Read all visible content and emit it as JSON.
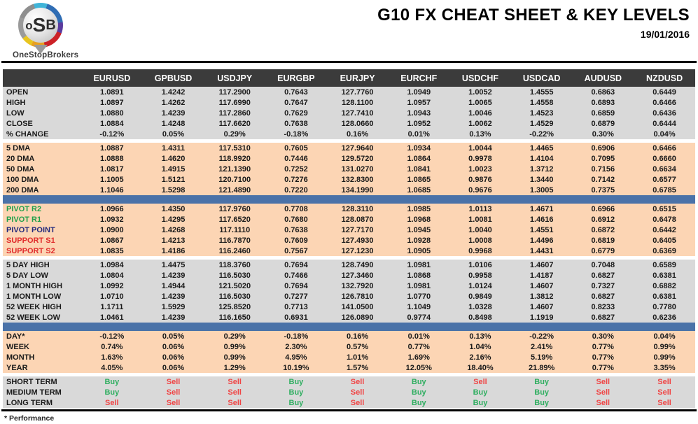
{
  "header": {
    "logo": {
      "acronym_o": "o",
      "acronym_s": "S",
      "acronym_b": "B",
      "brand": "OneStopBrokers"
    },
    "title": "G10 FX CHEAT SHEET & KEY LEVELS",
    "date": "19/01/2016"
  },
  "colors": {
    "header_row_bg": "#3b3b3b",
    "separator_bar_blue": "#4a72a8",
    "section_peach": "#fcd5b4",
    "section_gray": "#d9d9d9",
    "pivot_green": "#21a04a",
    "pivot_navy": "#232a7c",
    "support_red": "#e02b2b",
    "buy_green": "#2fae60",
    "sell_red": "#f04545"
  },
  "table": {
    "columns": [
      "EURUSD",
      "GPBUSD",
      "USDJPY",
      "EURGBP",
      "EURJPY",
      "EURCHF",
      "USDCHF",
      "USDCAD",
      "AUDUSD",
      "NZDUSD"
    ],
    "sections": [
      {
        "bg": "gray",
        "rows": [
          {
            "label": "OPEN",
            "values": [
              "1.0891",
              "1.4242",
              "117.2900",
              "0.7643",
              "127.7760",
              "1.0949",
              "1.0052",
              "1.4555",
              "0.6863",
              "0.6449"
            ]
          },
          {
            "label": "HIGH",
            "values": [
              "1.0897",
              "1.4262",
              "117.6990",
              "0.7647",
              "128.1100",
              "1.0957",
              "1.0065",
              "1.4558",
              "0.6893",
              "0.6466"
            ]
          },
          {
            "label": "LOW",
            "values": [
              "1.0880",
              "1.4239",
              "117.2860",
              "0.7629",
              "127.7410",
              "1.0943",
              "1.0046",
              "1.4523",
              "0.6859",
              "0.6436"
            ]
          },
          {
            "label": "CLOSE",
            "values": [
              "1.0884",
              "1.4248",
              "117.6620",
              "0.7638",
              "128.0660",
              "1.0952",
              "1.0062",
              "1.4529",
              "0.6879",
              "0.6444"
            ]
          },
          {
            "label": "% CHANGE",
            "values": [
              "-0.12%",
              "0.05%",
              "0.29%",
              "-0.18%",
              "0.16%",
              "0.01%",
              "0.13%",
              "-0.22%",
              "0.30%",
              "0.04%"
            ]
          }
        ]
      },
      {
        "separator": "gap"
      },
      {
        "bg": "peach",
        "rows": [
          {
            "label": "5 DMA",
            "values": [
              "1.0887",
              "1.4311",
              "117.5310",
              "0.7605",
              "127.9640",
              "1.0934",
              "1.0044",
              "1.4465",
              "0.6906",
              "0.6466"
            ]
          },
          {
            "label": "20 DMA",
            "values": [
              "1.0888",
              "1.4620",
              "118.9920",
              "0.7446",
              "129.5720",
              "1.0864",
              "0.9978",
              "1.4104",
              "0.7095",
              "0.6660"
            ]
          },
          {
            "label": "50 DMA",
            "values": [
              "1.0817",
              "1.4915",
              "121.1390",
              "0.7252",
              "131.0270",
              "1.0841",
              "1.0023",
              "1.3712",
              "0.7156",
              "0.6634"
            ]
          },
          {
            "label": "100 DMA",
            "values": [
              "1.1005",
              "1.5121",
              "120.7100",
              "0.7276",
              "132.8300",
              "1.0865",
              "0.9876",
              "1.3440",
              "0.7142",
              "0.6577"
            ]
          },
          {
            "label": "200 DMA",
            "values": [
              "1.1046",
              "1.5298",
              "121.4890",
              "0.7220",
              "134.1990",
              "1.0685",
              "0.9676",
              "1.3005",
              "0.7375",
              "0.6785"
            ]
          }
        ]
      },
      {
        "separator": "bar"
      },
      {
        "bg": "peach",
        "rows": [
          {
            "label": "PIVOT R2",
            "label_color": "green",
            "values": [
              "1.0966",
              "1.4350",
              "117.9760",
              "0.7708",
              "128.3110",
              "1.0985",
              "1.0113",
              "1.4671",
              "0.6966",
              "0.6515"
            ]
          },
          {
            "label": "PIVOT R1",
            "label_color": "green",
            "values": [
              "1.0932",
              "1.4295",
              "117.6520",
              "0.7680",
              "128.0870",
              "1.0968",
              "1.0081",
              "1.4616",
              "0.6912",
              "0.6478"
            ]
          },
          {
            "label": "PIVOT POINT",
            "label_color": "navy",
            "values": [
              "1.0900",
              "1.4268",
              "117.1110",
              "0.7638",
              "127.7170",
              "1.0945",
              "1.0040",
              "1.4551",
              "0.6872",
              "0.6442"
            ]
          },
          {
            "label": "SUPPORT S1",
            "label_color": "red",
            "values": [
              "1.0867",
              "1.4213",
              "116.7870",
              "0.7609",
              "127.4930",
              "1.0928",
              "1.0008",
              "1.4496",
              "0.6819",
              "0.6405"
            ]
          },
          {
            "label": "SUPPORT S2",
            "label_color": "red",
            "values": [
              "1.0835",
              "1.4186",
              "116.2460",
              "0.7567",
              "127.1230",
              "1.0905",
              "0.9968",
              "1.4431",
              "0.6779",
              "0.6369"
            ]
          }
        ]
      },
      {
        "separator": "gap"
      },
      {
        "bg": "gray",
        "rows": [
          {
            "label": "5 DAY HIGH",
            "values": [
              "1.0984",
              "1.4475",
              "118.3760",
              "0.7694",
              "128.7490",
              "1.0981",
              "1.0106",
              "1.4607",
              "0.7048",
              "0.6589"
            ]
          },
          {
            "label": "5 DAY LOW",
            "values": [
              "1.0804",
              "1.4239",
              "116.5030",
              "0.7466",
              "127.3460",
              "1.0868",
              "0.9958",
              "1.4187",
              "0.6827",
              "0.6381"
            ]
          },
          {
            "label": "1 MONTH HIGH",
            "values": [
              "1.0992",
              "1.4944",
              "121.5020",
              "0.7694",
              "132.7920",
              "1.0981",
              "1.0124",
              "1.4607",
              "0.7327",
              "0.6882"
            ]
          },
          {
            "label": "1 MONTH LOW",
            "values": [
              "1.0710",
              "1.4239",
              "116.5030",
              "0.7277",
              "126.7810",
              "1.0770",
              "0.9849",
              "1.3812",
              "0.6827",
              "0.6381"
            ]
          },
          {
            "label": "52 WEEK HIGH",
            "values": [
              "1.1711",
              "1.5929",
              "125.8520",
              "0.7713",
              "141.0500",
              "1.1049",
              "1.0328",
              "1.4607",
              "0.8233",
              "0.7780"
            ]
          },
          {
            "label": "52 WEEK LOW",
            "values": [
              "1.0461",
              "1.4239",
              "116.1650",
              "0.6931",
              "126.0890",
              "0.9774",
              "0.8498",
              "1.1919",
              "0.6827",
              "0.6236"
            ]
          }
        ]
      },
      {
        "separator": "bar"
      },
      {
        "bg": "peach",
        "rows": [
          {
            "label": "DAY*",
            "values": [
              "-0.12%",
              "0.05%",
              "0.29%",
              "-0.18%",
              "0.16%",
              "0.01%",
              "0.13%",
              "-0.22%",
              "0.30%",
              "0.04%"
            ]
          },
          {
            "label": "WEEK",
            "values": [
              "0.74%",
              "0.06%",
              "0.99%",
              "2.30%",
              "0.57%",
              "0.77%",
              "1.04%",
              "2.41%",
              "0.77%",
              "0.99%"
            ]
          },
          {
            "label": "MONTH",
            "values": [
              "1.63%",
              "0.06%",
              "0.99%",
              "4.95%",
              "1.01%",
              "1.69%",
              "2.16%",
              "5.19%",
              "0.77%",
              "0.99%"
            ]
          },
          {
            "label": "YEAR",
            "values": [
              "4.05%",
              "0.06%",
              "1.29%",
              "10.19%",
              "1.57%",
              "12.05%",
              "18.40%",
              "21.89%",
              "0.77%",
              "3.35%"
            ]
          }
        ]
      },
      {
        "separator": "gap"
      },
      {
        "bg": "gray",
        "signals": true,
        "rows": [
          {
            "label": "SHORT TERM",
            "values": [
              "Buy",
              "Sell",
              "Sell",
              "Buy",
              "Sell",
              "Buy",
              "Sell",
              "Buy",
              "Sell",
              "Sell"
            ]
          },
          {
            "label": "MEDIUM TERM",
            "values": [
              "Buy",
              "Sell",
              "Sell",
              "Buy",
              "Sell",
              "Buy",
              "Buy",
              "Buy",
              "Sell",
              "Sell"
            ]
          },
          {
            "label": "LONG TERM",
            "values": [
              "Sell",
              "Sell",
              "Sell",
              "Buy",
              "Sell",
              "Buy",
              "Buy",
              "Buy",
              "Sell",
              "Sell"
            ]
          }
        ]
      }
    ]
  },
  "footnote": "* Performance"
}
